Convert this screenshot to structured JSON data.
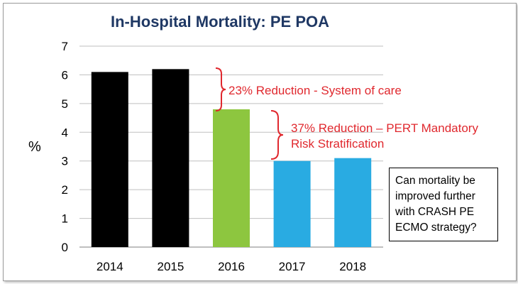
{
  "chart_data": {
    "type": "bar",
    "title": "In-Hospital Mortality: PE POA",
    "ylabel": "%",
    "xlabel": "",
    "categories": [
      "2014",
      "2015",
      "2016",
      "2017",
      "2018"
    ],
    "values": [
      6.1,
      6.2,
      4.8,
      3.0,
      3.1
    ],
    "bar_colors": [
      "#000000",
      "#000000",
      "#8dc63f",
      "#29abe2",
      "#29abe2"
    ],
    "ylim": [
      0,
      7
    ],
    "yticks": [
      "0",
      "1",
      "2",
      "3",
      "4",
      "5",
      "6",
      "7"
    ],
    "grid": true,
    "annotations": [
      {
        "text_lines": [
          "23% Reduction - System of care"
        ],
        "color": "#e0282e"
      },
      {
        "text_lines": [
          "37% Reduction – PERT Mandatory",
          "Risk Stratification"
        ],
        "color": "#e0282e"
      }
    ],
    "callout_lines": [
      "Can mortality be",
      "improved further",
      "with CRASH PE",
      "ECMO strategy?"
    ]
  }
}
